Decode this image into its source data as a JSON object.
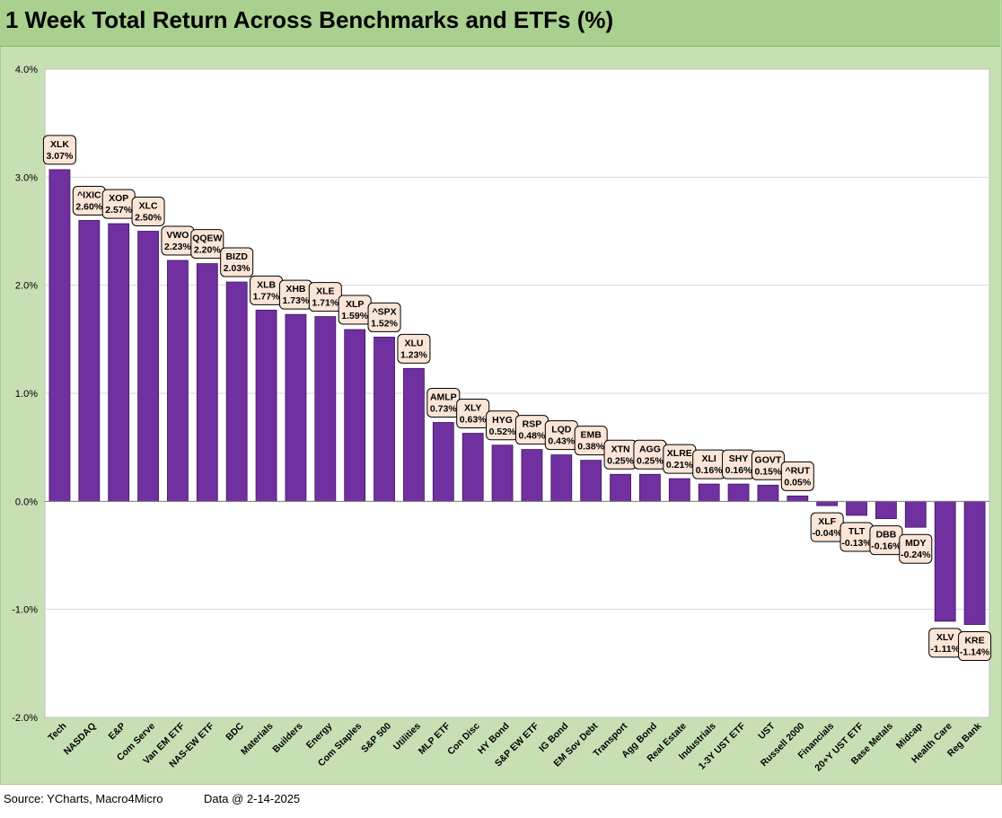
{
  "title": "1 Week Total Return Across Benchmarks and ETFs (%)",
  "footer": {
    "source": "Source: YCharts, Macro4Micro",
    "data_as_of": "Data @ 2-14-2025"
  },
  "colors": {
    "bar": "#7030a0",
    "bar_border": "#3d1760",
    "label_fill": "#fbe5d6",
    "title_bar": "#a9d08e",
    "frame": "#c6e0b4",
    "plot": "#ffffff",
    "grid": "#d9d9d9"
  },
  "chart_data": {
    "type": "bar",
    "title": "1 Week Total Return Across Benchmarks and ETFs (%)",
    "ylim": [
      -2.0,
      4.0
    ],
    "yticks": [
      -2.0,
      -1.0,
      0.0,
      1.0,
      2.0,
      3.0,
      4.0
    ],
    "ytick_labels": [
      "-2.0%",
      "-1.0%",
      "0.0%",
      "1.0%",
      "2.0%",
      "3.0%",
      "4.0%"
    ],
    "grid": true,
    "legend": "none",
    "categories": [
      "Tech",
      "NASDAQ",
      "E&P",
      "Com Serve",
      "Van EM ETF",
      "NAS-EW ETF",
      "BDC",
      "Materials",
      "Builders",
      "Energy",
      "Com Staples",
      "S&P 500",
      "Utilities",
      "MLP ETF",
      "Con Disc",
      "HY Bond",
      "S&P EW ETF",
      "IG Bond",
      "EM Sov Debt",
      "Transport",
      "Agg Bond",
      "Real Estate",
      "Industrials",
      "1-3Y UST ETF",
      "UST",
      "Russell 2000",
      "Financials",
      "20+Y UST ETF",
      "Base Metals",
      "Midcap",
      "Health Care",
      "Reg Bank"
    ],
    "tickers": [
      "XLK",
      "^IXIC",
      "XOP",
      "XLC",
      "VWO",
      "QQEW",
      "BIZD",
      "XLB",
      "XHB",
      "XLE",
      "XLP",
      "^SPX",
      "XLU",
      "AMLP",
      "XLY",
      "HYG",
      "RSP",
      "LQD",
      "EMB",
      "XTN",
      "AGG",
      "XLRE",
      "XLI",
      "SHY",
      "GOVT",
      "^RUT",
      "XLF",
      "TLT",
      "DBB",
      "MDY",
      "XLV",
      "KRE"
    ],
    "values": [
      3.07,
      2.6,
      2.57,
      2.5,
      2.23,
      2.2,
      2.03,
      1.77,
      1.73,
      1.71,
      1.59,
      1.52,
      1.23,
      0.73,
      0.63,
      0.52,
      0.48,
      0.43,
      0.38,
      0.25,
      0.25,
      0.21,
      0.16,
      0.16,
      0.15,
      0.05,
      -0.04,
      -0.13,
      -0.16,
      -0.24,
      -1.11,
      -1.14
    ],
    "value_labels": [
      "3.07%",
      "2.60%",
      "2.57%",
      "2.50%",
      "2.23%",
      "2.20%",
      "2.03%",
      "1.77%",
      "1.73%",
      "1.71%",
      "1.59%",
      "1.52%",
      "1.23%",
      "0.73%",
      "0.63%",
      "0.52%",
      "0.48%",
      "0.43%",
      "0.38%",
      "0.25%",
      "0.25%",
      "0.21%",
      "0.16%",
      "0.16%",
      "0.15%",
      "0.05%",
      "-0.04%",
      "-0.13%",
      "-0.16%",
      "-0.24%",
      "-1.11%",
      "-1.14%"
    ]
  }
}
